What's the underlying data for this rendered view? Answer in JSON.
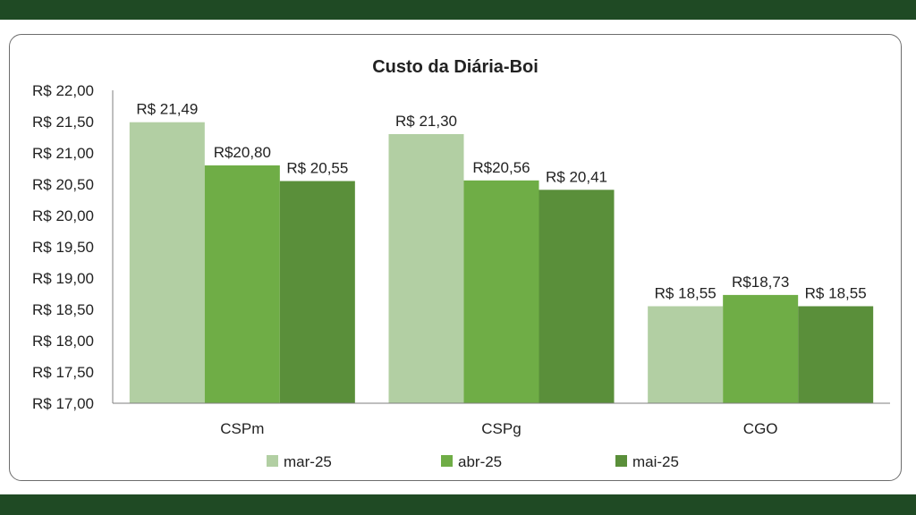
{
  "chart_data": {
    "type": "bar",
    "title": "Custo da Diária-Boi",
    "categories": [
      "CSPm",
      "CSPg",
      "CGO"
    ],
    "series": [
      {
        "name": "mar-25",
        "values": [
          21.49,
          21.3,
          18.55
        ],
        "labels": [
          "R$ 21,49",
          "R$ 21,30",
          "R$ 18,55"
        ],
        "color": "#b2cfa3"
      },
      {
        "name": "abr-25",
        "values": [
          20.8,
          20.56,
          18.73
        ],
        "labels": [
          "R$20,80",
          "R$20,56",
          "R$18,73"
        ],
        "color": "#6fad46"
      },
      {
        "name": "mai-25",
        "values": [
          20.55,
          20.41,
          18.55
        ],
        "labels": [
          "R$ 20,55",
          "R$ 20,41",
          "R$ 18,55"
        ],
        "color": "#5a8f3a"
      }
    ],
    "ylim": [
      17.0,
      22.0
    ],
    "yticks": [
      {
        "value": 22.0,
        "label": "R$ 22,00"
      },
      {
        "value": 21.5,
        "label": "R$ 21,50"
      },
      {
        "value": 21.0,
        "label": "R$ 21,00"
      },
      {
        "value": 20.5,
        "label": "R$ 20,50"
      },
      {
        "value": 20.0,
        "label": "R$ 20,00"
      },
      {
        "value": 19.5,
        "label": "R$ 19,50"
      },
      {
        "value": 19.0,
        "label": "R$ 19,00"
      },
      {
        "value": 18.5,
        "label": "R$ 18,50"
      },
      {
        "value": 18.0,
        "label": "R$ 18,00"
      },
      {
        "value": 17.5,
        "label": "R$ 17,50"
      },
      {
        "value": 17.0,
        "label": "R$ 17,00"
      }
    ],
    "grid": false,
    "legend_position": "bottom",
    "xlabel": "",
    "ylabel": ""
  },
  "colors": {
    "band": "#1f4a24",
    "axis": "#7f7f7f"
  }
}
